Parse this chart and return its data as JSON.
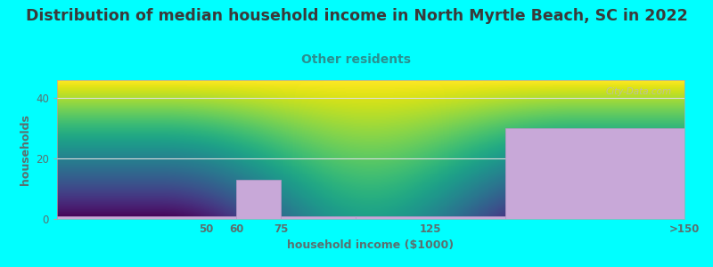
{
  "title": "Distribution of median household income in North Myrtle Beach, SC in 2022",
  "subtitle": "Other residents",
  "xlabel": "household income ($1000)",
  "ylabel": "households",
  "bar_lefts": [
    0,
    60,
    75,
    100,
    150
  ],
  "bar_rights": [
    60,
    75,
    100,
    150,
    210
  ],
  "bar_heights": [
    1,
    13,
    1,
    1,
    30
  ],
  "xtick_positions": [
    50,
    60,
    75,
    125,
    210
  ],
  "xtick_labels": [
    "50",
    "60",
    "75",
    "125",
    ">150"
  ],
  "bar_color": "#C8A8D8",
  "bar_edge_color": "#B898C8",
  "plot_bg_color_top": "#FFFFFF",
  "plot_bg_color_bottom": "#D4ECD4",
  "figure_bg_color": "#00FFFF",
  "title_color": "#3A3A3A",
  "subtitle_color": "#2A9090",
  "axis_label_color": "#5A7070",
  "tick_label_color": "#5A7070",
  "grid_color": "#DDDDDD",
  "ylim": [
    0,
    46
  ],
  "xlim": [
    0,
    210
  ],
  "yticks": [
    0,
    20,
    40
  ],
  "title_fontsize": 12.5,
  "subtitle_fontsize": 10,
  "label_fontsize": 9,
  "tick_fontsize": 8.5,
  "watermark_text": "City-Data.com",
  "watermark_color": "#BBBBBB"
}
